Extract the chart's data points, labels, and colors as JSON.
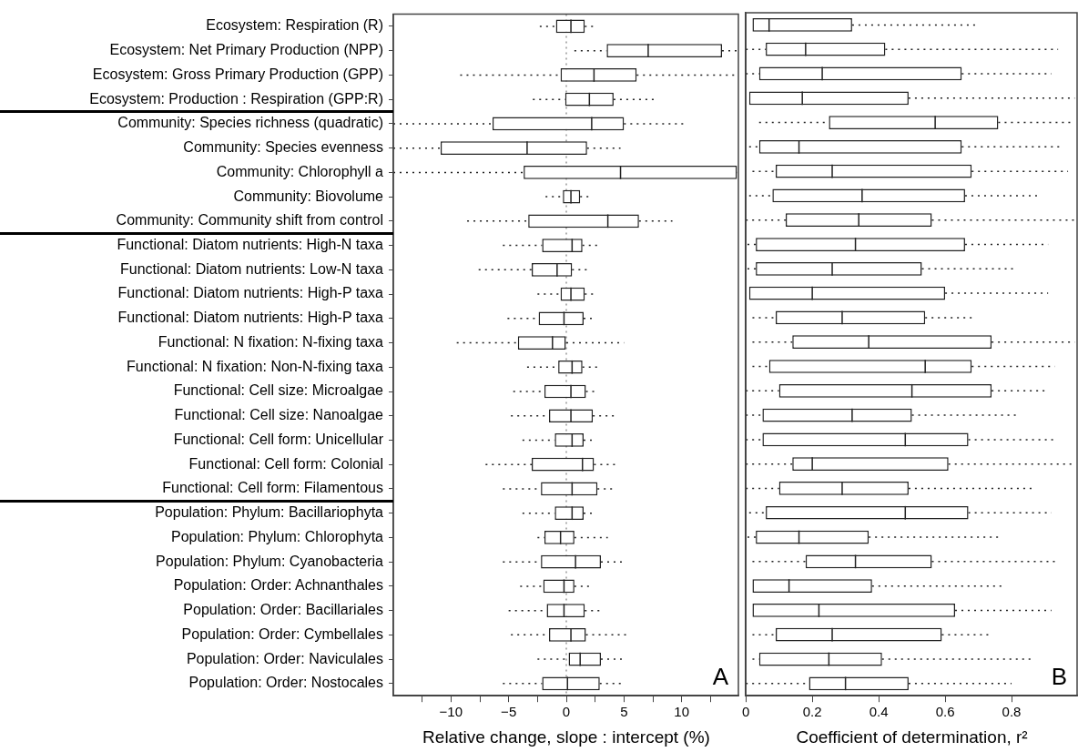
{
  "chart_data": [
    {
      "type": "box",
      "orientation": "horizontal",
      "xlabel": "Relative change, slope : intercept (%)",
      "annotations": [
        "A"
      ],
      "categories": [
        "Ecosystem: Respiration (R)",
        "Ecosystem: Net Primary Production (NPP)",
        "Ecosystem: Gross Primary Production (GPP)",
        "Ecosystem: Production : Respiration (GPP:R)",
        "Community: Species richness (quadratic)",
        "Community: Species evenness",
        "Community: Chlorophyll a",
        "Community: Biovolume",
        "Community: Community shift from control",
        "Functional: Diatom nutrients: High-N taxa",
        "Functional: Diatom nutrients: Low-N taxa",
        "Functional: Diatom nutrients: High-P taxa",
        "Functional: Diatom nutrients: High-P taxa",
        "Functional: N fixation: N-fixing taxa",
        "Functional: N fixation: Non-N-fixing taxa",
        "Functional: Cell size: Microalgae",
        "Functional: Cell size: Nanoalgae",
        "Functional: Cell form: Unicellular",
        "Functional: Cell form: Colonial",
        "Functional: Cell form: Filamentous",
        "Population: Phylum: Bacillariophyta",
        "Population: Phylum: Chlorophyta",
        "Population: Phylum: Cyanobacteria",
        "Population: Order: Achnanthales",
        "Population: Order: Bacillariales",
        "Population: Order: Cymbellales",
        "Population: Order: Naviculales",
        "Population: Order: Nostocales"
      ],
      "boxes": [
        {
          "low": -2.3,
          "q1": -0.9,
          "median": 0.4,
          "q3": 1.6,
          "high": 2.5
        },
        {
          "low": 0.7,
          "q1": 3.5,
          "median": 7.1,
          "q3": 13.5,
          "high": 14.9
        },
        {
          "low": -9.2,
          "q1": -0.5,
          "median": 2.4,
          "q3": 6.1,
          "high": 14.9
        },
        {
          "low": -2.9,
          "q1": -0.1,
          "median": 2,
          "q3": 4.1,
          "high": 7.7
        },
        {
          "low": -15,
          "q1": -6.4,
          "median": 2.2,
          "q3": 5,
          "high": 10.4
        },
        {
          "low": -15,
          "q1": -10.9,
          "median": -3.4,
          "q3": 1.8,
          "high": 4.7
        },
        {
          "low": -15,
          "q1": -3.7,
          "median": 4.7,
          "q3": 14.8,
          "high": 14.8
        },
        {
          "low": -1.8,
          "q1": -0.3,
          "median": 0.4,
          "q3": 1.2,
          "high": 2
        },
        {
          "low": -8.6,
          "q1": -3.3,
          "median": 3.6,
          "q3": 6.3,
          "high": 9.2
        },
        {
          "low": -5.5,
          "q1": -2.1,
          "median": 0.5,
          "q3": 1.4,
          "high": 2.9
        },
        {
          "low": -7.6,
          "q1": -3,
          "median": -0.8,
          "q3": 0.5,
          "high": 2
        },
        {
          "low": -2.5,
          "q1": -0.5,
          "median": 0.4,
          "q3": 1.6,
          "high": 2.5
        },
        {
          "low": -5.1,
          "q1": -2.4,
          "median": -0.2,
          "q3": 1.5,
          "high": 2.4
        },
        {
          "low": -9.5,
          "q1": -4.2,
          "median": -1.2,
          "q3": 0,
          "high": 5
        },
        {
          "low": -3.4,
          "q1": -0.7,
          "median": 0.5,
          "q3": 1.4,
          "high": 3
        },
        {
          "low": -4.6,
          "q1": -1.9,
          "median": 0.4,
          "q3": 1.7,
          "high": 2.5
        },
        {
          "low": -4.8,
          "q1": -1.5,
          "median": 0.4,
          "q3": 2.3,
          "high": 4.5
        },
        {
          "low": -3.8,
          "q1": -1,
          "median": 0.5,
          "q3": 1.5,
          "high": 2.4
        },
        {
          "low": -7,
          "q1": -3,
          "median": 1.4,
          "q3": 2.4,
          "high": 4.6
        },
        {
          "low": -5.5,
          "q1": -2.2,
          "median": 0.5,
          "q3": 2.7,
          "high": 4.3
        },
        {
          "low": -3.8,
          "q1": -1,
          "median": 0.5,
          "q3": 1.5,
          "high": 2.4
        },
        {
          "low": -2.5,
          "q1": -1.9,
          "median": -0.5,
          "q3": 0.7,
          "high": 3.6
        },
        {
          "low": -5.5,
          "q1": -2.2,
          "median": 0.8,
          "q3": 3,
          "high": 5.2
        },
        {
          "low": -4,
          "q1": -2,
          "median": -0.2,
          "q3": 0.7,
          "high": 2.3
        },
        {
          "low": -5,
          "q1": -1.7,
          "median": -0.2,
          "q3": 1.6,
          "high": 3
        },
        {
          "low": -4.8,
          "q1": -1.5,
          "median": 0.4,
          "q3": 1.7,
          "high": 5.2
        },
        {
          "low": -2.5,
          "q1": 0.2,
          "median": 1.2,
          "q3": 3,
          "high": 5.2
        },
        {
          "low": -5.5,
          "q1": -2.1,
          "median": 0.1,
          "q3": 2.9,
          "high": 5.1
        }
      ],
      "xlim": [
        -15,
        15
      ],
      "xticks": [
        {
          "value": -12.5,
          "label": null
        },
        {
          "value": -10,
          "label": "−10"
        },
        {
          "value": -7.5,
          "label": null
        },
        {
          "value": -5,
          "label": "−5"
        },
        {
          "value": -2.5,
          "label": null
        },
        0,
        {
          "value": 2.5,
          "label": null
        },
        5,
        {
          "value": 7.5,
          "label": null
        },
        10,
        {
          "value": 12.5,
          "label": null
        }
      ],
      "ref_lines": [
        {
          "axis": "x",
          "value": 0,
          "color": "#888888",
          "line_style": "dotted"
        }
      ]
    },
    {
      "type": "box",
      "orientation": "horizontal",
      "xlabel": "Coefficient of determination, r²",
      "annotations": [
        "B"
      ],
      "tick_labels": "x",
      "categories": [
        null,
        null,
        null,
        null,
        null,
        null,
        null,
        null,
        null,
        null,
        null,
        null,
        null,
        null,
        null,
        null,
        null,
        null,
        null,
        null,
        null,
        null,
        null,
        null,
        null,
        null,
        null,
        null
      ],
      "boxes": [
        {
          "low": 0.02,
          "q1": 0.02,
          "median": 0.07,
          "q3": 0.32,
          "high": 0.7
        },
        {
          "low": 0,
          "q1": 0.06,
          "median": 0.18,
          "q3": 0.42,
          "high": 0.94
        },
        {
          "low": 0,
          "q1": 0.04,
          "median": 0.23,
          "q3": 0.65,
          "high": 0.92
        },
        {
          "low": 0.01,
          "q1": 0.01,
          "median": 0.17,
          "q3": 0.49,
          "high": 0.99
        },
        {
          "low": 0.04,
          "q1": 0.25,
          "median": 0.57,
          "q3": 0.76,
          "high": 0.99
        },
        {
          "low": 0.01,
          "q1": 0.04,
          "median": 0.16,
          "q3": 0.65,
          "high": 0.95
        },
        {
          "low": 0.02,
          "q1": 0.09,
          "median": 0.26,
          "q3": 0.68,
          "high": 0.97
        },
        {
          "low": 0.01,
          "q1": 0.08,
          "median": 0.35,
          "q3": 0.66,
          "high": 0.89
        },
        {
          "low": 0,
          "q1": 0.12,
          "median": 0.34,
          "q3": 0.56,
          "high": 0.99
        },
        {
          "low": 0.005,
          "q1": 0.03,
          "median": 0.33,
          "q3": 0.66,
          "high": 0.91
        },
        {
          "low": 0.005,
          "q1": 0.03,
          "median": 0.26,
          "q3": 0.53,
          "high": 0.81
        },
        {
          "low": 0.01,
          "q1": 0.01,
          "median": 0.2,
          "q3": 0.6,
          "high": 0.91
        },
        {
          "low": 0.02,
          "q1": 0.09,
          "median": 0.29,
          "q3": 0.54,
          "high": 0.68
        },
        {
          "low": 0.02,
          "q1": 0.14,
          "median": 0.37,
          "q3": 0.74,
          "high": 0.99
        },
        {
          "low": 0.02,
          "q1": 0.07,
          "median": 0.54,
          "q3": 0.68,
          "high": 0.93
        },
        {
          "low": 0,
          "q1": 0.1,
          "median": 0.5,
          "q3": 0.74,
          "high": 0.91
        },
        {
          "low": 0,
          "q1": 0.05,
          "median": 0.32,
          "q3": 0.5,
          "high": 0.82
        },
        {
          "low": 0,
          "q1": 0.05,
          "median": 0.48,
          "q3": 0.67,
          "high": 0.93
        },
        {
          "low": 0,
          "q1": 0.14,
          "median": 0.2,
          "q3": 0.61,
          "high": 0.99
        },
        {
          "low": 0,
          "q1": 0.1,
          "median": 0.29,
          "q3": 0.49,
          "high": 0.87
        },
        {
          "low": 0.01,
          "q1": 0.06,
          "median": 0.48,
          "q3": 0.67,
          "high": 0.92
        },
        {
          "low": 0.005,
          "q1": 0.03,
          "median": 0.16,
          "q3": 0.37,
          "high": 0.76
        },
        {
          "low": 0.02,
          "q1": 0.18,
          "median": 0.33,
          "q3": 0.56,
          "high": 0.94
        },
        {
          "low": 0.02,
          "q1": 0.02,
          "median": 0.13,
          "q3": 0.38,
          "high": 0.78
        },
        {
          "low": 0.02,
          "q1": 0.02,
          "median": 0.22,
          "q3": 0.63,
          "high": 0.92
        },
        {
          "low": 0.02,
          "q1": 0.09,
          "median": 0.26,
          "q3": 0.59,
          "high": 0.73
        },
        {
          "low": 0.02,
          "q1": 0.04,
          "median": 0.25,
          "q3": 0.41,
          "high": 0.86
        },
        {
          "low": 0,
          "q1": 0.19,
          "median": 0.3,
          "q3": 0.49,
          "high": 0.8
        }
      ],
      "xlim": [
        0,
        1
      ],
      "xticks": [
        0,
        0.2,
        0.4,
        0.6,
        0.8
      ]
    }
  ]
}
